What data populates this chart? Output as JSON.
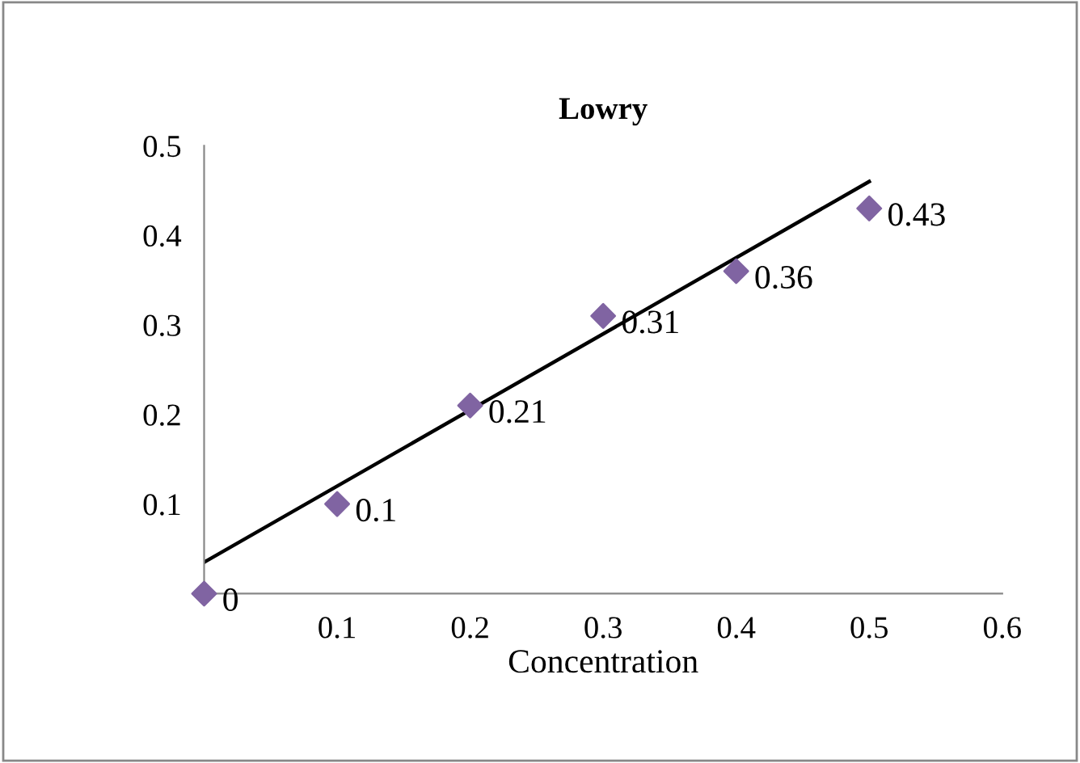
{
  "chart_data": {
    "type": "scatter",
    "title": "Lowry",
    "xlabel": "Concentration",
    "xlim": [
      0,
      0.6
    ],
    "xticks": [
      0.1,
      0.2,
      0.3,
      0.4,
      0.5,
      0.6
    ],
    "ylim": [
      0,
      0.5
    ],
    "yticks": [
      0.1,
      0.2,
      0.3,
      0.4,
      0.5
    ],
    "grid": false,
    "legend": false,
    "series": [
      {
        "color": "#8064a2",
        "marker": "diamond",
        "x": [
          0,
          0.1,
          0.2,
          0.3,
          0.4,
          0.5
        ],
        "values": [
          0,
          0.1,
          0.21,
          0.31,
          0.36,
          0.43
        ],
        "value_labels": [
          "0",
          "0.1",
          "0.21",
          "0.31",
          "0.36",
          "0.43"
        ]
      },
      {
        "type": "line",
        "color": "#000000",
        "marker": "none",
        "x": [
          0,
          0.5
        ],
        "values": [
          0.035,
          0.46
        ],
        "line_style": "solid"
      }
    ]
  }
}
